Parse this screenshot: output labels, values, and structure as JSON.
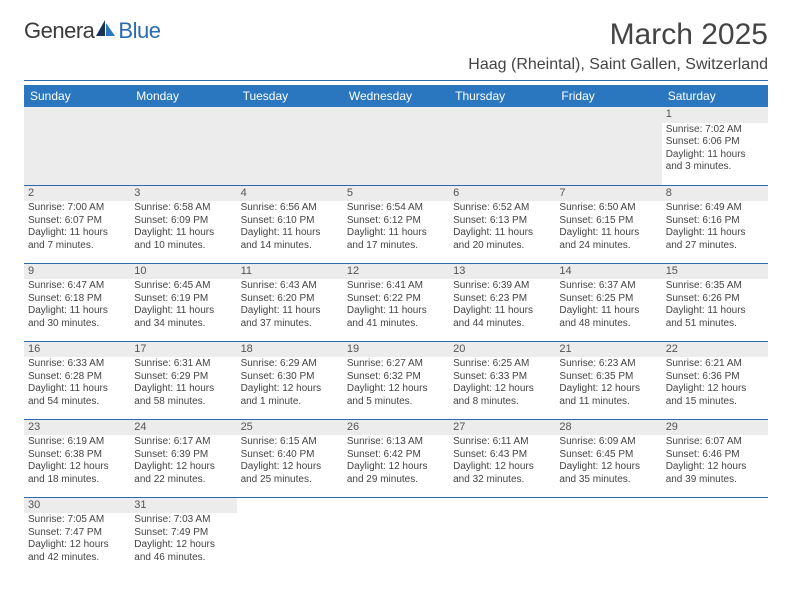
{
  "logo": {
    "part1": "Genera",
    "part2": "Blue"
  },
  "title": "March 2025",
  "location": "Haag (Rheintal), Saint Gallen, Switzerland",
  "weekday_header_bg": "#2a77bf",
  "weekday_header_fg": "#ffffff",
  "rule_color": "#2a6bb0",
  "daynum_bg": "#ececec",
  "weekdays": [
    "Sunday",
    "Monday",
    "Tuesday",
    "Wednesday",
    "Thursday",
    "Friday",
    "Saturday"
  ],
  "labels": {
    "sunrise": "Sunrise:",
    "sunset": "Sunset:",
    "daylight": "Daylight:"
  },
  "weeks": [
    [
      null,
      null,
      null,
      null,
      null,
      null,
      {
        "n": "1",
        "sr": "7:02 AM",
        "ss": "6:06 PM",
        "dl": "11 hours and 3 minutes."
      }
    ],
    [
      {
        "n": "2",
        "sr": "7:00 AM",
        "ss": "6:07 PM",
        "dl": "11 hours and 7 minutes."
      },
      {
        "n": "3",
        "sr": "6:58 AM",
        "ss": "6:09 PM",
        "dl": "11 hours and 10 minutes."
      },
      {
        "n": "4",
        "sr": "6:56 AM",
        "ss": "6:10 PM",
        "dl": "11 hours and 14 minutes."
      },
      {
        "n": "5",
        "sr": "6:54 AM",
        "ss": "6:12 PM",
        "dl": "11 hours and 17 minutes."
      },
      {
        "n": "6",
        "sr": "6:52 AM",
        "ss": "6:13 PM",
        "dl": "11 hours and 20 minutes."
      },
      {
        "n": "7",
        "sr": "6:50 AM",
        "ss": "6:15 PM",
        "dl": "11 hours and 24 minutes."
      },
      {
        "n": "8",
        "sr": "6:49 AM",
        "ss": "6:16 PM",
        "dl": "11 hours and 27 minutes."
      }
    ],
    [
      {
        "n": "9",
        "sr": "6:47 AM",
        "ss": "6:18 PM",
        "dl": "11 hours and 30 minutes."
      },
      {
        "n": "10",
        "sr": "6:45 AM",
        "ss": "6:19 PM",
        "dl": "11 hours and 34 minutes."
      },
      {
        "n": "11",
        "sr": "6:43 AM",
        "ss": "6:20 PM",
        "dl": "11 hours and 37 minutes."
      },
      {
        "n": "12",
        "sr": "6:41 AM",
        "ss": "6:22 PM",
        "dl": "11 hours and 41 minutes."
      },
      {
        "n": "13",
        "sr": "6:39 AM",
        "ss": "6:23 PM",
        "dl": "11 hours and 44 minutes."
      },
      {
        "n": "14",
        "sr": "6:37 AM",
        "ss": "6:25 PM",
        "dl": "11 hours and 48 minutes."
      },
      {
        "n": "15",
        "sr": "6:35 AM",
        "ss": "6:26 PM",
        "dl": "11 hours and 51 minutes."
      }
    ],
    [
      {
        "n": "16",
        "sr": "6:33 AM",
        "ss": "6:28 PM",
        "dl": "11 hours and 54 minutes."
      },
      {
        "n": "17",
        "sr": "6:31 AM",
        "ss": "6:29 PM",
        "dl": "11 hours and 58 minutes."
      },
      {
        "n": "18",
        "sr": "6:29 AM",
        "ss": "6:30 PM",
        "dl": "12 hours and 1 minute."
      },
      {
        "n": "19",
        "sr": "6:27 AM",
        "ss": "6:32 PM",
        "dl": "12 hours and 5 minutes."
      },
      {
        "n": "20",
        "sr": "6:25 AM",
        "ss": "6:33 PM",
        "dl": "12 hours and 8 minutes."
      },
      {
        "n": "21",
        "sr": "6:23 AM",
        "ss": "6:35 PM",
        "dl": "12 hours and 11 minutes."
      },
      {
        "n": "22",
        "sr": "6:21 AM",
        "ss": "6:36 PM",
        "dl": "12 hours and 15 minutes."
      }
    ],
    [
      {
        "n": "23",
        "sr": "6:19 AM",
        "ss": "6:38 PM",
        "dl": "12 hours and 18 minutes."
      },
      {
        "n": "24",
        "sr": "6:17 AM",
        "ss": "6:39 PM",
        "dl": "12 hours and 22 minutes."
      },
      {
        "n": "25",
        "sr": "6:15 AM",
        "ss": "6:40 PM",
        "dl": "12 hours and 25 minutes."
      },
      {
        "n": "26",
        "sr": "6:13 AM",
        "ss": "6:42 PM",
        "dl": "12 hours and 29 minutes."
      },
      {
        "n": "27",
        "sr": "6:11 AM",
        "ss": "6:43 PM",
        "dl": "12 hours and 32 minutes."
      },
      {
        "n": "28",
        "sr": "6:09 AM",
        "ss": "6:45 PM",
        "dl": "12 hours and 35 minutes."
      },
      {
        "n": "29",
        "sr": "6:07 AM",
        "ss": "6:46 PM",
        "dl": "12 hours and 39 minutes."
      }
    ],
    [
      {
        "n": "30",
        "sr": "7:05 AM",
        "ss": "7:47 PM",
        "dl": "12 hours and 42 minutes."
      },
      {
        "n": "31",
        "sr": "7:03 AM",
        "ss": "7:49 PM",
        "dl": "12 hours and 46 minutes."
      },
      null,
      null,
      null,
      null,
      null
    ]
  ]
}
